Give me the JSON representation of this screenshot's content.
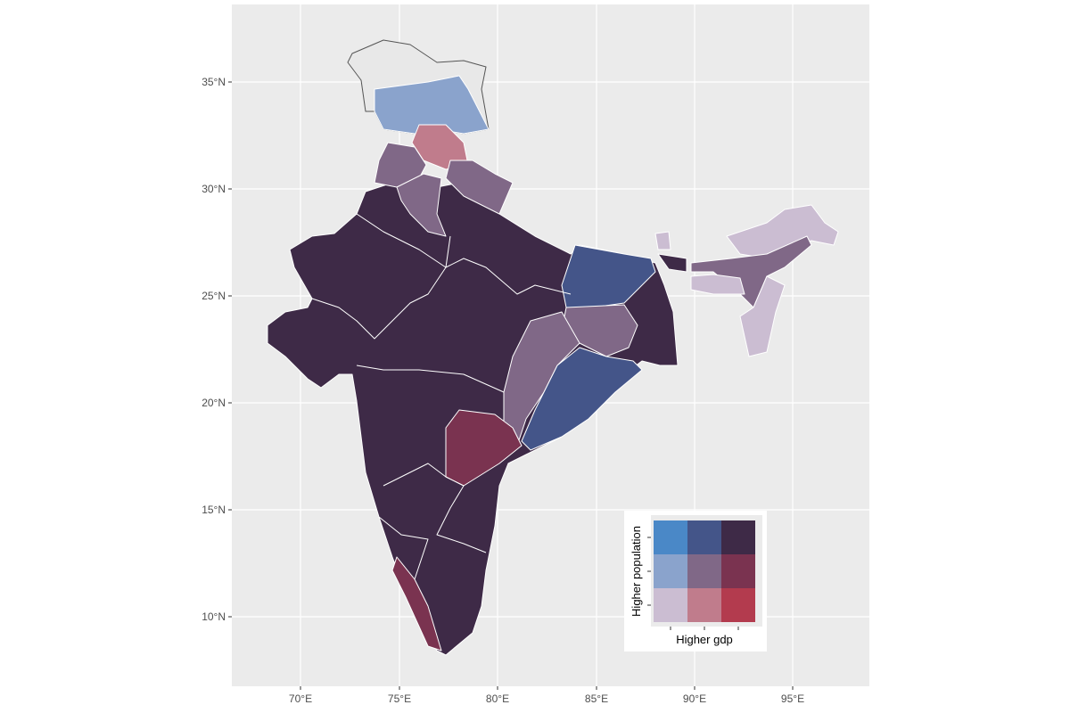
{
  "axes": {
    "x_ticks": [
      "70°E",
      "75°E",
      "80°E",
      "85°E",
      "90°E",
      "95°E"
    ],
    "y_ticks": [
      "35°N",
      "30°N",
      "25°N",
      "20°N",
      "15°N",
      "10°N"
    ]
  },
  "legend": {
    "x_label": "Higher gdp",
    "y_label": "Higher population",
    "palette": [
      [
        "#cbbdd2",
        "#c07c8c",
        "#b33b4e"
      ],
      [
        "#8aa3cc",
        "#806887",
        "#7a3350"
      ],
      [
        "#4a88c7",
        "#445589",
        "#3e2a47"
      ]
    ]
  },
  "colors": {
    "panel": "#ebebeb",
    "grid": "#ffffff",
    "border": "#ffffff"
  }
}
